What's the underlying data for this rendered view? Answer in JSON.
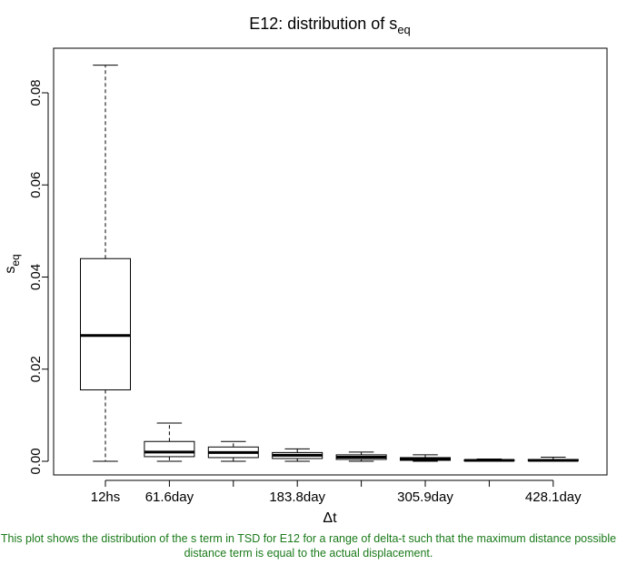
{
  "chart_data": {
    "type": "boxplot",
    "title_main": "E12: distribution of s",
    "title_sub": "eq",
    "xlabel": "Δt",
    "ylabel_main": "s",
    "ylabel_sub": "eq",
    "ylim": [
      -0.002,
      0.09
    ],
    "y_ticks": [
      "0.00",
      "0.02",
      "0.04",
      "0.06",
      "0.08"
    ],
    "y_tick_values": [
      0,
      0.02,
      0.04,
      0.06,
      0.08
    ],
    "categories": [
      "12hs",
      "61.6day",
      "",
      "183.8day",
      "",
      "305.9day",
      "",
      "428.1day"
    ],
    "boxes": [
      {
        "min": 0.0,
        "q1": 0.0155,
        "median": 0.0273,
        "q3": 0.044,
        "max": 0.086
      },
      {
        "min": 0.0,
        "q1": 0.001,
        "median": 0.002,
        "q3": 0.0043,
        "max": 0.0083
      },
      {
        "min": 0.0,
        "q1": 0.0008,
        "median": 0.0019,
        "q3": 0.0031,
        "max": 0.0043
      },
      {
        "min": 0.0,
        "q1": 0.0006,
        "median": 0.0013,
        "q3": 0.0019,
        "max": 0.0027
      },
      {
        "min": 0.0,
        "q1": 0.0004,
        "median": 0.0009,
        "q3": 0.0014,
        "max": 0.002
      },
      {
        "min": 0.0,
        "q1": 0.0002,
        "median": 0.0005,
        "q3": 0.0008,
        "max": 0.0014
      },
      {
        "min": 0.0,
        "q1": 0.0001,
        "median": 0.0002,
        "q3": 0.0003,
        "max": 0.0005
      },
      {
        "min": 0.0,
        "q1": 0.0001,
        "median": 0.0002,
        "q3": 0.0004,
        "max": 0.0009
      }
    ],
    "grid": false
  },
  "caption": "This plot shows the distribution of the s term in TSD for E12 for a range of delta-t such that the maximum distance possible distance term is equal to the actual displacement."
}
